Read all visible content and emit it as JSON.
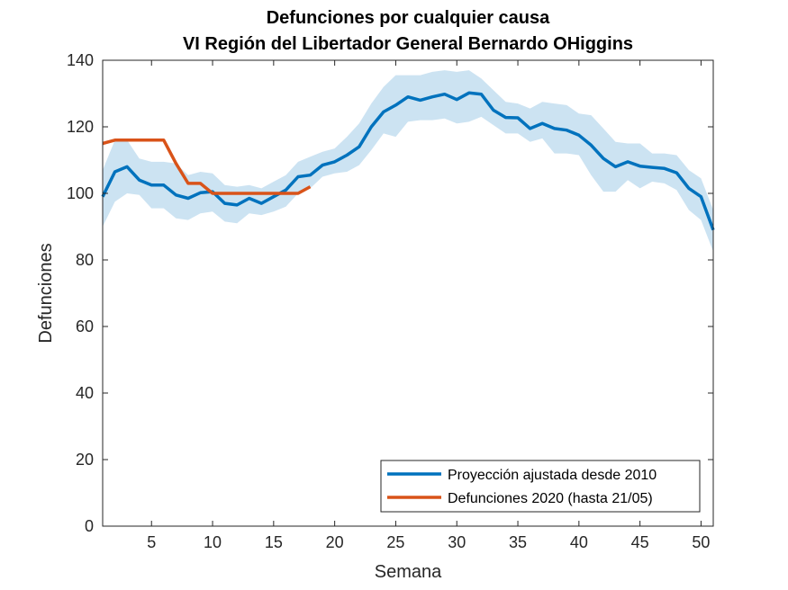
{
  "chart_data": {
    "type": "line",
    "title": [
      "Defunciones por cualquier causa",
      "VI Región del Libertador General Bernardo OHiggins"
    ],
    "xlabel": "Semana",
    "ylabel": "Defunciones",
    "xlim": [
      1,
      51
    ],
    "ylim": [
      0,
      140
    ],
    "xticks": [
      5,
      10,
      15,
      20,
      25,
      30,
      35,
      40,
      45,
      50
    ],
    "yticks": [
      0,
      20,
      40,
      60,
      80,
      100,
      120,
      140
    ],
    "grid": false,
    "legend_position": "bottom-right",
    "series": [
      {
        "name": "Proyección ajustada desde 2010",
        "color": "#0072BD",
        "x": [
          1,
          2,
          3,
          4,
          5,
          6,
          7,
          8,
          9,
          10,
          11,
          12,
          13,
          14,
          15,
          16,
          17,
          18,
          19,
          20,
          21,
          22,
          23,
          24,
          25,
          26,
          27,
          28,
          29,
          30,
          31,
          32,
          33,
          34,
          35,
          36,
          37,
          38,
          39,
          40,
          41,
          42,
          43,
          44,
          45,
          46,
          47,
          48,
          49,
          50,
          51
        ],
        "values": [
          99,
          106.5,
          108,
          104,
          102.5,
          102.5,
          99.5,
          98.5,
          100.2,
          100.5,
          97,
          96.5,
          98.5,
          97,
          99,
          101,
          105,
          105.5,
          108.5,
          109.5,
          111.5,
          114,
          120,
          124.5,
          126.5,
          129,
          128,
          129,
          129.8,
          128.2,
          130.2,
          129.8,
          125,
          122.8,
          122.7,
          119.5,
          121,
          119.5,
          119,
          117.5,
          114.5,
          110.5,
          108,
          109.5,
          108.2,
          107.8,
          107.5,
          106.2,
          101.5,
          99,
          89
        ],
        "band_upper": [
          107,
          116,
          116,
          110.5,
          109.5,
          109.5,
          109,
          105.5,
          106.5,
          106,
          102.5,
          102,
          102.5,
          101.5,
          103.5,
          105.5,
          109.5,
          111,
          112.5,
          113.5,
          117,
          121,
          127,
          132,
          135.5,
          135.5,
          135.5,
          136.5,
          137,
          136.5,
          137,
          134.5,
          131,
          127.5,
          127,
          125.5,
          127.5,
          127,
          126.5,
          124,
          123.5,
          119.5,
          115.5,
          115,
          115,
          112,
          112,
          111.5,
          107,
          104.5,
          95
        ],
        "band_lower": [
          90,
          97.5,
          100,
          99.5,
          95.5,
          95.5,
          92.5,
          92,
          94,
          94.5,
          91.5,
          91,
          94,
          93.5,
          94.5,
          96,
          100,
          101.5,
          105,
          106,
          106.5,
          108.5,
          113,
          118,
          117,
          121.5,
          122,
          122,
          122.5,
          121,
          121.5,
          123,
          120.5,
          118,
          118,
          115.5,
          116.5,
          112,
          112,
          111.5,
          105.5,
          100.5,
          100.5,
          104,
          101.5,
          103.5,
          103,
          101,
          95,
          92,
          82.5
        ]
      },
      {
        "name": "Defunciones 2020 (hasta 21/05)",
        "color": "#D95319",
        "x": [
          1,
          2,
          3,
          4,
          5,
          6,
          7,
          8,
          9,
          10,
          11,
          12,
          13,
          14,
          15,
          16,
          17,
          18
        ],
        "values": [
          115,
          116,
          116,
          116,
          116,
          116,
          109,
          103,
          103,
          100,
          100,
          100,
          100,
          100,
          100,
          100,
          100,
          102
        ]
      }
    ]
  }
}
